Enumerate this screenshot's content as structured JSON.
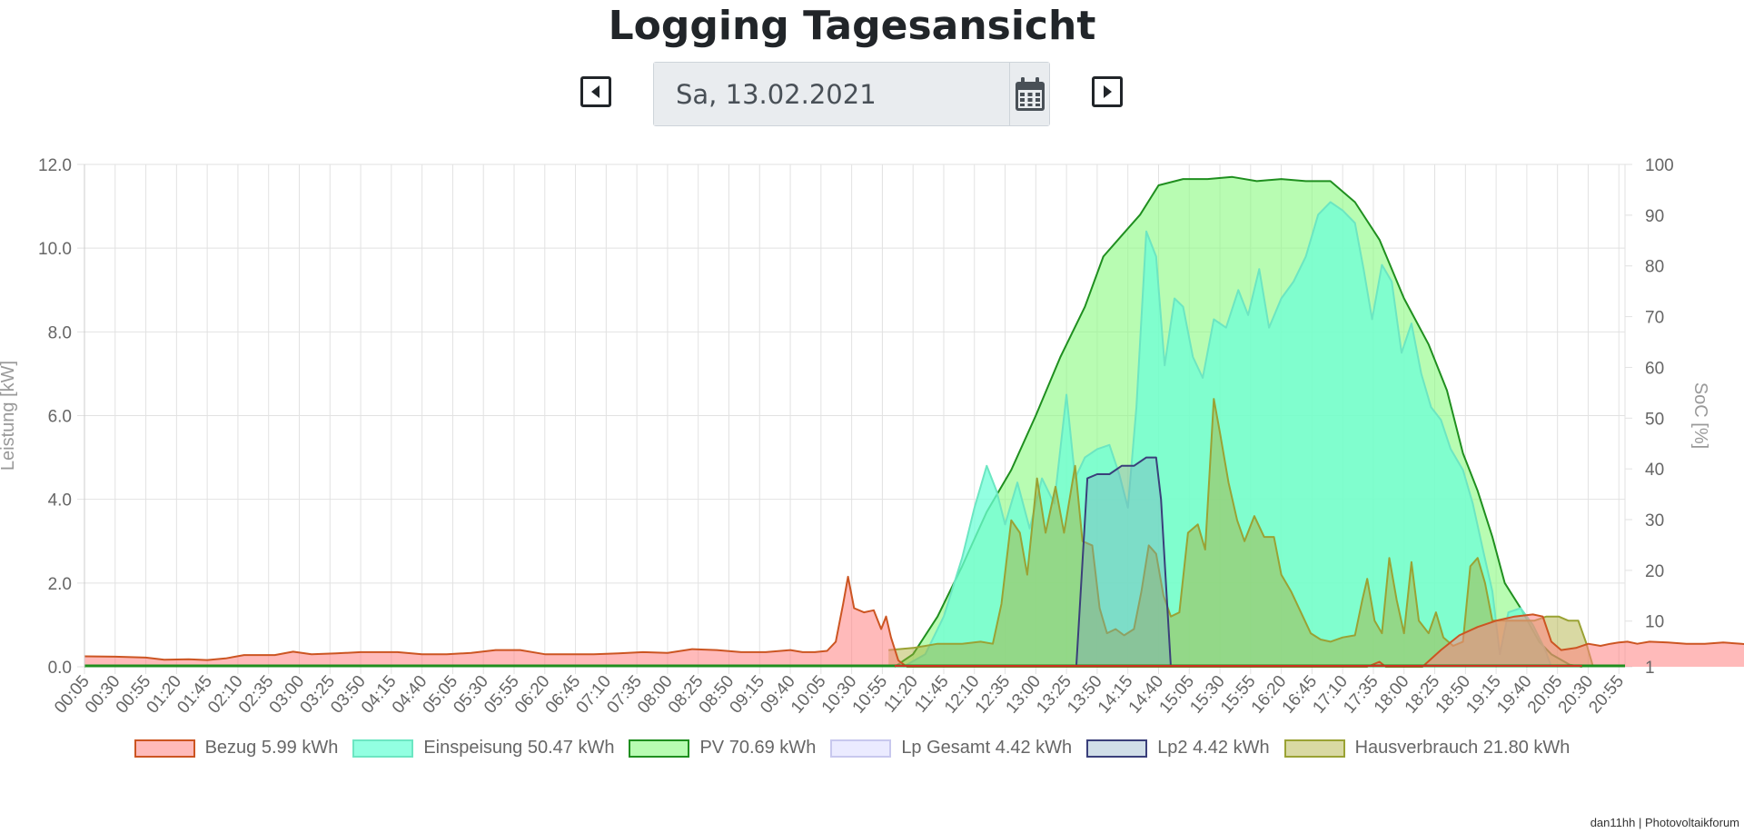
{
  "header": {
    "title": "Logging Tagesansicht",
    "date_value": "Sa, 13.02.2021"
  },
  "footer": {
    "credit": "dan11hh | Photovoltaikforum"
  },
  "chart_data": {
    "type": "area",
    "title": "",
    "ylabel": "Leistung [kW]",
    "y2label": "SoC [%]",
    "ylim": [
      0,
      12
    ],
    "y2lim": [
      1,
      100
    ],
    "yticks": [
      "0.0",
      "2.0",
      "4.0",
      "6.0",
      "8.0",
      "10.0",
      "12.0"
    ],
    "y2ticks": [
      "1",
      "10",
      "20",
      "30",
      "40",
      "50",
      "60",
      "70",
      "80",
      "90",
      "100"
    ],
    "grid": true,
    "legend_position": "bottom",
    "x_tick_labels": [
      "00:05",
      "00:30",
      "00:55",
      "01:20",
      "01:45",
      "02:10",
      "02:35",
      "03:00",
      "03:25",
      "03:50",
      "04:15",
      "04:40",
      "05:05",
      "05:30",
      "05:55",
      "06:20",
      "06:45",
      "07:10",
      "07:35",
      "08:00",
      "08:25",
      "08:50",
      "09:15",
      "09:40",
      "10:05",
      "10:30",
      "10:55",
      "11:20",
      "11:45",
      "12:10",
      "12:35",
      "13:00",
      "13:25",
      "13:50",
      "14:15",
      "14:40",
      "15:05",
      "15:30",
      "15:55",
      "16:20",
      "16:45",
      "17:10",
      "17:35",
      "18:00",
      "18:25",
      "18:50",
      "19:15",
      "19:40",
      "20:05",
      "20:30",
      "20:55"
    ],
    "x_range_minutes": [
      5,
      1260
    ],
    "series": [
      {
        "name": "Bezug 5.99 kWh",
        "color": "#e8a29a",
        "fill": "rgba(255,130,130,0.55)",
        "stroke": "#cc5522",
        "points": [
          [
            5,
            0.25
          ],
          [
            30,
            0.24
          ],
          [
            55,
            0.22
          ],
          [
            70,
            0.17
          ],
          [
            90,
            0.18
          ],
          [
            105,
            0.16
          ],
          [
            120,
            0.2
          ],
          [
            135,
            0.28
          ],
          [
            160,
            0.28
          ],
          [
            175,
            0.36
          ],
          [
            190,
            0.3
          ],
          [
            210,
            0.32
          ],
          [
            230,
            0.35
          ],
          [
            260,
            0.35
          ],
          [
            280,
            0.3
          ],
          [
            300,
            0.3
          ],
          [
            320,
            0.33
          ],
          [
            340,
            0.4
          ],
          [
            360,
            0.4
          ],
          [
            380,
            0.3
          ],
          [
            400,
            0.3
          ],
          [
            420,
            0.3
          ],
          [
            440,
            0.32
          ],
          [
            460,
            0.35
          ],
          [
            480,
            0.33
          ],
          [
            500,
            0.42
          ],
          [
            520,
            0.4
          ],
          [
            540,
            0.35
          ],
          [
            560,
            0.35
          ],
          [
            580,
            0.4
          ],
          [
            590,
            0.35
          ],
          [
            600,
            0.35
          ],
          [
            610,
            0.38
          ],
          [
            617,
            0.6
          ],
          [
            623,
            1.5
          ],
          [
            627,
            2.15
          ],
          [
            632,
            1.4
          ],
          [
            640,
            1.3
          ],
          [
            648,
            1.35
          ],
          [
            654,
            0.9
          ],
          [
            658,
            1.2
          ],
          [
            662,
            0.7
          ],
          [
            668,
            0.15
          ],
          [
            675,
            0.0
          ],
          [
            1050,
            0.0
          ],
          [
            1060,
            0.12
          ],
          [
            1065,
            0.0
          ],
          [
            1095,
            0.0
          ],
          [
            1110,
            0.4
          ],
          [
            1125,
            0.75
          ],
          [
            1140,
            0.95
          ],
          [
            1155,
            1.1
          ],
          [
            1170,
            1.2
          ],
          [
            1185,
            1.25
          ],
          [
            1193,
            1.2
          ],
          [
            1200,
            0.6
          ],
          [
            1208,
            0.4
          ],
          [
            1220,
            0.45
          ],
          [
            1230,
            0.55
          ],
          [
            1240,
            0.5
          ],
          [
            1248,
            0.55
          ],
          [
            1255,
            0.58
          ],
          [
            1262,
            0.6
          ],
          [
            1270,
            0.55
          ],
          [
            1280,
            0.6
          ],
          [
            1295,
            0.58
          ],
          [
            1310,
            0.55
          ],
          [
            1325,
            0.55
          ],
          [
            1340,
            0.58
          ],
          [
            1355,
            0.55
          ],
          [
            1370,
            0.5
          ],
          [
            1385,
            0.55
          ],
          [
            1400,
            0.45
          ],
          [
            1412,
            0.6
          ],
          [
            1420,
            0.62
          ]
        ]
      },
      {
        "name": "Einspeisung 50.47 kWh",
        "color": "#7ffde0",
        "fill": "rgba(110,255,215,0.75)",
        "stroke": "#6ce6c2",
        "points": [
          [
            672,
            0.0
          ],
          [
            690,
            0.3
          ],
          [
            705,
            1.2
          ],
          [
            720,
            2.6
          ],
          [
            730,
            3.8
          ],
          [
            740,
            4.8
          ],
          [
            748,
            4.2
          ],
          [
            755,
            3.4
          ],
          [
            765,
            4.4
          ],
          [
            775,
            3.3
          ],
          [
            785,
            4.5
          ],
          [
            795,
            3.9
          ],
          [
            805,
            6.5
          ],
          [
            812,
            4.5
          ],
          [
            820,
            5.0
          ],
          [
            830,
            5.2
          ],
          [
            840,
            5.3
          ],
          [
            848,
            4.6
          ],
          [
            855,
            3.8
          ],
          [
            862,
            6.2
          ],
          [
            870,
            10.4
          ],
          [
            878,
            9.8
          ],
          [
            885,
            7.2
          ],
          [
            893,
            8.8
          ],
          [
            900,
            8.6
          ],
          [
            908,
            7.4
          ],
          [
            916,
            6.9
          ],
          [
            925,
            8.3
          ],
          [
            935,
            8.1
          ],
          [
            945,
            9.0
          ],
          [
            953,
            8.4
          ],
          [
            962,
            9.5
          ],
          [
            970,
            8.1
          ],
          [
            980,
            8.8
          ],
          [
            990,
            9.2
          ],
          [
            1000,
            9.8
          ],
          [
            1010,
            10.8
          ],
          [
            1020,
            11.1
          ],
          [
            1030,
            10.9
          ],
          [
            1040,
            10.6
          ],
          [
            1047,
            9.5
          ],
          [
            1054,
            8.3
          ],
          [
            1062,
            9.6
          ],
          [
            1070,
            9.2
          ],
          [
            1078,
            7.5
          ],
          [
            1086,
            8.2
          ],
          [
            1094,
            7.0
          ],
          [
            1102,
            6.2
          ],
          [
            1110,
            5.9
          ],
          [
            1118,
            5.2
          ],
          [
            1128,
            4.7
          ],
          [
            1136,
            3.9
          ],
          [
            1145,
            2.7
          ],
          [
            1152,
            1.8
          ],
          [
            1158,
            0.3
          ],
          [
            1165,
            1.3
          ],
          [
            1175,
            1.4
          ],
          [
            1185,
            1.0
          ],
          [
            1195,
            0.4
          ],
          [
            1200,
            0.0
          ]
        ]
      },
      {
        "name": "PV 70.69 kWh",
        "color": "#adfaa5",
        "fill": "rgba(140,250,130,0.62)",
        "stroke": "#1f8f1f",
        "points": [
          [
            665,
            0.0
          ],
          [
            680,
            0.3
          ],
          [
            700,
            1.2
          ],
          [
            720,
            2.4
          ],
          [
            740,
            3.7
          ],
          [
            760,
            4.7
          ],
          [
            780,
            6.0
          ],
          [
            800,
            7.4
          ],
          [
            820,
            8.6
          ],
          [
            835,
            9.8
          ],
          [
            850,
            10.3
          ],
          [
            865,
            10.8
          ],
          [
            880,
            11.5
          ],
          [
            900,
            11.65
          ],
          [
            920,
            11.65
          ],
          [
            940,
            11.7
          ],
          [
            960,
            11.6
          ],
          [
            980,
            11.65
          ],
          [
            1000,
            11.6
          ],
          [
            1020,
            11.6
          ],
          [
            1040,
            11.1
          ],
          [
            1060,
            10.2
          ],
          [
            1080,
            8.8
          ],
          [
            1100,
            7.7
          ],
          [
            1115,
            6.6
          ],
          [
            1128,
            5.1
          ],
          [
            1140,
            4.2
          ],
          [
            1152,
            3.1
          ],
          [
            1162,
            2.0
          ],
          [
            1175,
            1.4
          ],
          [
            1190,
            0.6
          ],
          [
            1200,
            0.3
          ],
          [
            1215,
            0.05
          ],
          [
            1225,
            0.0
          ]
        ]
      },
      {
        "name": "Lp Gesamt 4.42 kWh",
        "color": "#dcdcff",
        "fill": "rgba(215,215,255,0.5)",
        "stroke": "#c8c8ee",
        "points": []
      },
      {
        "name": "Lp2 4.42 kWh",
        "color": "#6c5f9c",
        "fill": "rgba(120,160,190,0.35)",
        "stroke": "#3a3f7a",
        "points": [
          [
            813,
            0.0
          ],
          [
            818,
            2.5
          ],
          [
            822,
            4.5
          ],
          [
            830,
            4.6
          ],
          [
            840,
            4.6
          ],
          [
            850,
            4.8
          ],
          [
            860,
            4.8
          ],
          [
            870,
            5.0
          ],
          [
            878,
            5.0
          ],
          [
            882,
            4.0
          ],
          [
            886,
            2.0
          ],
          [
            890,
            0.0
          ]
        ]
      },
      {
        "name": "Hausverbrauch 21.80 kWh",
        "color": "#a8a836",
        "fill": "rgba(170,170,50,0.45)",
        "stroke": "#9aa234",
        "points": [
          [
            660,
            0.4
          ],
          [
            680,
            0.45
          ],
          [
            700,
            0.55
          ],
          [
            720,
            0.55
          ],
          [
            735,
            0.6
          ],
          [
            745,
            0.55
          ],
          [
            752,
            1.5
          ],
          [
            760,
            3.5
          ],
          [
            767,
            3.2
          ],
          [
            773,
            2.2
          ],
          [
            781,
            4.5
          ],
          [
            788,
            3.2
          ],
          [
            796,
            4.3
          ],
          [
            803,
            3.2
          ],
          [
            812,
            4.8
          ],
          [
            818,
            3.0
          ],
          [
            826,
            2.9
          ],
          [
            832,
            1.4
          ],
          [
            838,
            0.8
          ],
          [
            845,
            0.9
          ],
          [
            852,
            0.75
          ],
          [
            860,
            0.9
          ],
          [
            866,
            1.8
          ],
          [
            872,
            2.9
          ],
          [
            878,
            2.7
          ],
          [
            884,
            1.7
          ],
          [
            890,
            1.2
          ],
          [
            897,
            1.3
          ],
          [
            904,
            3.2
          ],
          [
            912,
            3.4
          ],
          [
            918,
            2.8
          ],
          [
            925,
            6.4
          ],
          [
            930,
            5.6
          ],
          [
            937,
            4.4
          ],
          [
            944,
            3.5
          ],
          [
            950,
            3.0
          ],
          [
            958,
            3.6
          ],
          [
            966,
            3.1
          ],
          [
            974,
            3.1
          ],
          [
            980,
            2.2
          ],
          [
            988,
            1.8
          ],
          [
            996,
            1.3
          ],
          [
            1004,
            0.8
          ],
          [
            1012,
            0.65
          ],
          [
            1020,
            0.6
          ],
          [
            1030,
            0.7
          ],
          [
            1040,
            0.75
          ],
          [
            1046,
            1.6
          ],
          [
            1050,
            2.1
          ],
          [
            1056,
            1.1
          ],
          [
            1062,
            0.8
          ],
          [
            1068,
            2.6
          ],
          [
            1074,
            1.6
          ],
          [
            1080,
            0.8
          ],
          [
            1086,
            2.5
          ],
          [
            1092,
            1.1
          ],
          [
            1100,
            0.8
          ],
          [
            1106,
            1.3
          ],
          [
            1112,
            0.7
          ],
          [
            1120,
            0.5
          ],
          [
            1128,
            0.6
          ],
          [
            1134,
            2.4
          ],
          [
            1140,
            2.6
          ],
          [
            1146,
            2.0
          ],
          [
            1152,
            1.1
          ],
          [
            1158,
            1.1
          ],
          [
            1166,
            1.1
          ],
          [
            1176,
            1.1
          ],
          [
            1186,
            1.1
          ],
          [
            1196,
            1.2
          ],
          [
            1206,
            1.2
          ],
          [
            1214,
            1.1
          ],
          [
            1222,
            1.1
          ],
          [
            1228,
            0.6
          ],
          [
            1234,
            0.0
          ]
        ]
      }
    ]
  }
}
